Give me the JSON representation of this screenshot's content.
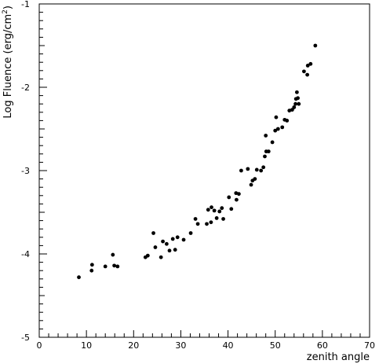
{
  "chart_data": {
    "type": "scatter",
    "xlabel": "zenith angle",
    "ylabel_main": "Log Fluence (erg/cm",
    "ylabel_sup": "2",
    "ylabel_close": ")",
    "xlim": [
      0,
      70
    ],
    "ylim": [
      -5,
      -1
    ],
    "xticks_major": [
      0,
      10,
      20,
      30,
      40,
      50,
      60,
      70
    ],
    "xtick_labels": [
      "0",
      "10",
      "20",
      "30",
      "40",
      "50",
      "60",
      "70"
    ],
    "yticks_major": [
      -5,
      -4,
      -3,
      -2,
      -1
    ],
    "ytick_labels": [
      "-5",
      "-4",
      "-3",
      "-2",
      "-1"
    ],
    "grid": false,
    "series": [
      {
        "points": [
          [
            8.4,
            -4.28
          ],
          [
            11.2,
            -4.13
          ],
          [
            11.1,
            -4.2
          ],
          [
            14.0,
            -4.15
          ],
          [
            15.6,
            -4.01
          ],
          [
            15.9,
            -4.14
          ],
          [
            16.6,
            -4.15
          ],
          [
            22.5,
            -4.04
          ],
          [
            23.0,
            -4.02
          ],
          [
            24.2,
            -3.75
          ],
          [
            24.6,
            -3.92
          ],
          [
            25.8,
            -4.04
          ],
          [
            26.2,
            -3.85
          ],
          [
            27.0,
            -3.88
          ],
          [
            27.6,
            -3.96
          ],
          [
            28.3,
            -3.82
          ],
          [
            28.8,
            -3.95
          ],
          [
            29.3,
            -3.8
          ],
          [
            30.6,
            -3.83
          ],
          [
            32.1,
            -3.75
          ],
          [
            33.1,
            -3.58
          ],
          [
            33.6,
            -3.64
          ],
          [
            35.5,
            -3.64
          ],
          [
            35.8,
            -3.47
          ],
          [
            36.4,
            -3.62
          ],
          [
            36.5,
            -3.44
          ],
          [
            37.1,
            -3.48
          ],
          [
            37.6,
            -3.57
          ],
          [
            38.2,
            -3.49
          ],
          [
            38.7,
            -3.45
          ],
          [
            39.0,
            -3.58
          ],
          [
            40.2,
            -3.32
          ],
          [
            40.7,
            -3.46
          ],
          [
            41.7,
            -3.27
          ],
          [
            41.8,
            -3.35
          ],
          [
            42.3,
            -3.28
          ],
          [
            42.8,
            -3.0
          ],
          [
            44.2,
            -2.98
          ],
          [
            44.9,
            -3.17
          ],
          [
            45.2,
            -3.12
          ],
          [
            45.7,
            -3.1
          ],
          [
            46.1,
            -2.99
          ],
          [
            47.0,
            -3.0
          ],
          [
            47.5,
            -2.96
          ],
          [
            47.8,
            -2.83
          ],
          [
            48.0,
            -2.58
          ],
          [
            48.1,
            -2.77
          ],
          [
            48.6,
            -2.77
          ],
          [
            49.4,
            -2.66
          ],
          [
            50.0,
            -2.52
          ],
          [
            50.2,
            -2.36
          ],
          [
            50.6,
            -2.5
          ],
          [
            51.5,
            -2.48
          ],
          [
            52.0,
            -2.39
          ],
          [
            52.5,
            -2.4
          ],
          [
            53.0,
            -2.28
          ],
          [
            53.6,
            -2.27
          ],
          [
            54.0,
            -2.24
          ],
          [
            54.3,
            -2.2
          ],
          [
            54.4,
            -2.14
          ],
          [
            54.6,
            -2.06
          ],
          [
            54.8,
            -2.13
          ],
          [
            55.0,
            -2.2
          ],
          [
            56.1,
            -1.81
          ],
          [
            56.8,
            -1.85
          ],
          [
            56.9,
            -1.74
          ],
          [
            57.5,
            -1.72
          ],
          [
            58.5,
            -1.5
          ]
        ]
      }
    ]
  }
}
